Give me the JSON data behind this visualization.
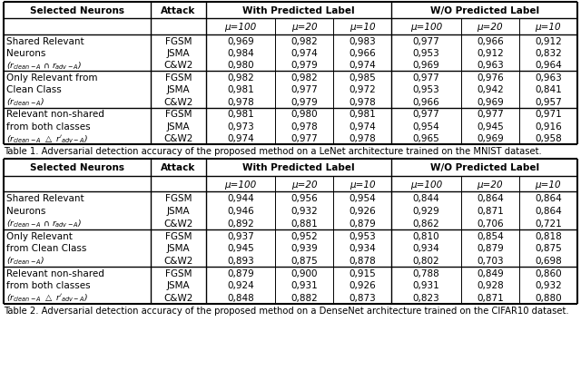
{
  "table1_caption": "Table 1. Adversarial detection accuracy of the proposed method on a LeNet architecture trained on the MNIST dataset.",
  "table2_caption": "Table 2. Adversarial detection accuracy of the proposed method on a DenseNet architecture trained on the CIFAR10 dataset.",
  "table1_data": [
    [
      "0,969",
      "0,982",
      "0,983",
      "0,977",
      "0,966",
      "0,912"
    ],
    [
      "0,984",
      "0,974",
      "0,966",
      "0,953",
      "0,912",
      "0,832"
    ],
    [
      "0,980",
      "0,979",
      "0,974",
      "0,969",
      "0,963",
      "0,964"
    ],
    [
      "0,982",
      "0,982",
      "0,985",
      "0,977",
      "0,976",
      "0,963"
    ],
    [
      "0,981",
      "0,977",
      "0,972",
      "0,953",
      "0,942",
      "0,841"
    ],
    [
      "0,978",
      "0,979",
      "0,978",
      "0,966",
      "0,969",
      "0,957"
    ],
    [
      "0,981",
      "0,980",
      "0,981",
      "0,977",
      "0,977",
      "0,971"
    ],
    [
      "0,973",
      "0,978",
      "0,974",
      "0,954",
      "0,945",
      "0,916"
    ],
    [
      "0,974",
      "0,977",
      "0,978",
      "0,965",
      "0,969",
      "0,958"
    ]
  ],
  "table2_data": [
    [
      "0,944",
      "0,956",
      "0,954",
      "0,844",
      "0,864",
      "0,864"
    ],
    [
      "0,946",
      "0,932",
      "0,926",
      "0,929",
      "0,871",
      "0,864"
    ],
    [
      "0,892",
      "0,881",
      "0,879",
      "0,862",
      "0,706",
      "0,721"
    ],
    [
      "0,937",
      "0,952",
      "0,953",
      "0,810",
      "0,854",
      "0,818"
    ],
    [
      "0,945",
      "0,939",
      "0,934",
      "0,934",
      "0,879",
      "0,875"
    ],
    [
      "0,893",
      "0,875",
      "0,878",
      "0,802",
      "0,703",
      "0,698"
    ],
    [
      "0,879",
      "0,900",
      "0,915",
      "0,788",
      "0,849",
      "0,860"
    ],
    [
      "0,924",
      "0,931",
      "0,926",
      "0,931",
      "0,928",
      "0,932"
    ],
    [
      "0,848",
      "0,882",
      "0,873",
      "0,823",
      "0,871",
      "0,880"
    ]
  ],
  "group_labels_t1": [
    [
      "Shared Relevant",
      "Neurons"
    ],
    [
      "Only Relevant from",
      "Clean Class"
    ],
    [
      "Relevant non-shared",
      "from both classes"
    ]
  ],
  "group_labels_t2": [
    [
      "Shared Relevant",
      "Neurons"
    ],
    [
      "Only Relevant",
      "from Clean Class"
    ],
    [
      "Relevant non-shared",
      "from both classes"
    ]
  ],
  "sub_labels": [
    "($r_{clean-A}$ $\\cap$ $r_{adv-A}$)",
    "($r_{clean-A}$)",
    "($r_{clean-A}$ $\\triangle$ $r'_{adv-A}$)"
  ],
  "attacks": [
    "FGSM",
    "JSMA",
    "C&W2"
  ],
  "mu_labels": [
    "μ=100",
    "μ=20",
    "μ=10",
    "μ=100",
    "μ=20",
    "μ=10"
  ],
  "with_label": "With Predicted Label",
  "wo_label": "W/O Predicted Label",
  "neurons_header": "Selected Neurons",
  "attack_header": "Attack",
  "background_color": "#ffffff",
  "font_size": 7.5
}
